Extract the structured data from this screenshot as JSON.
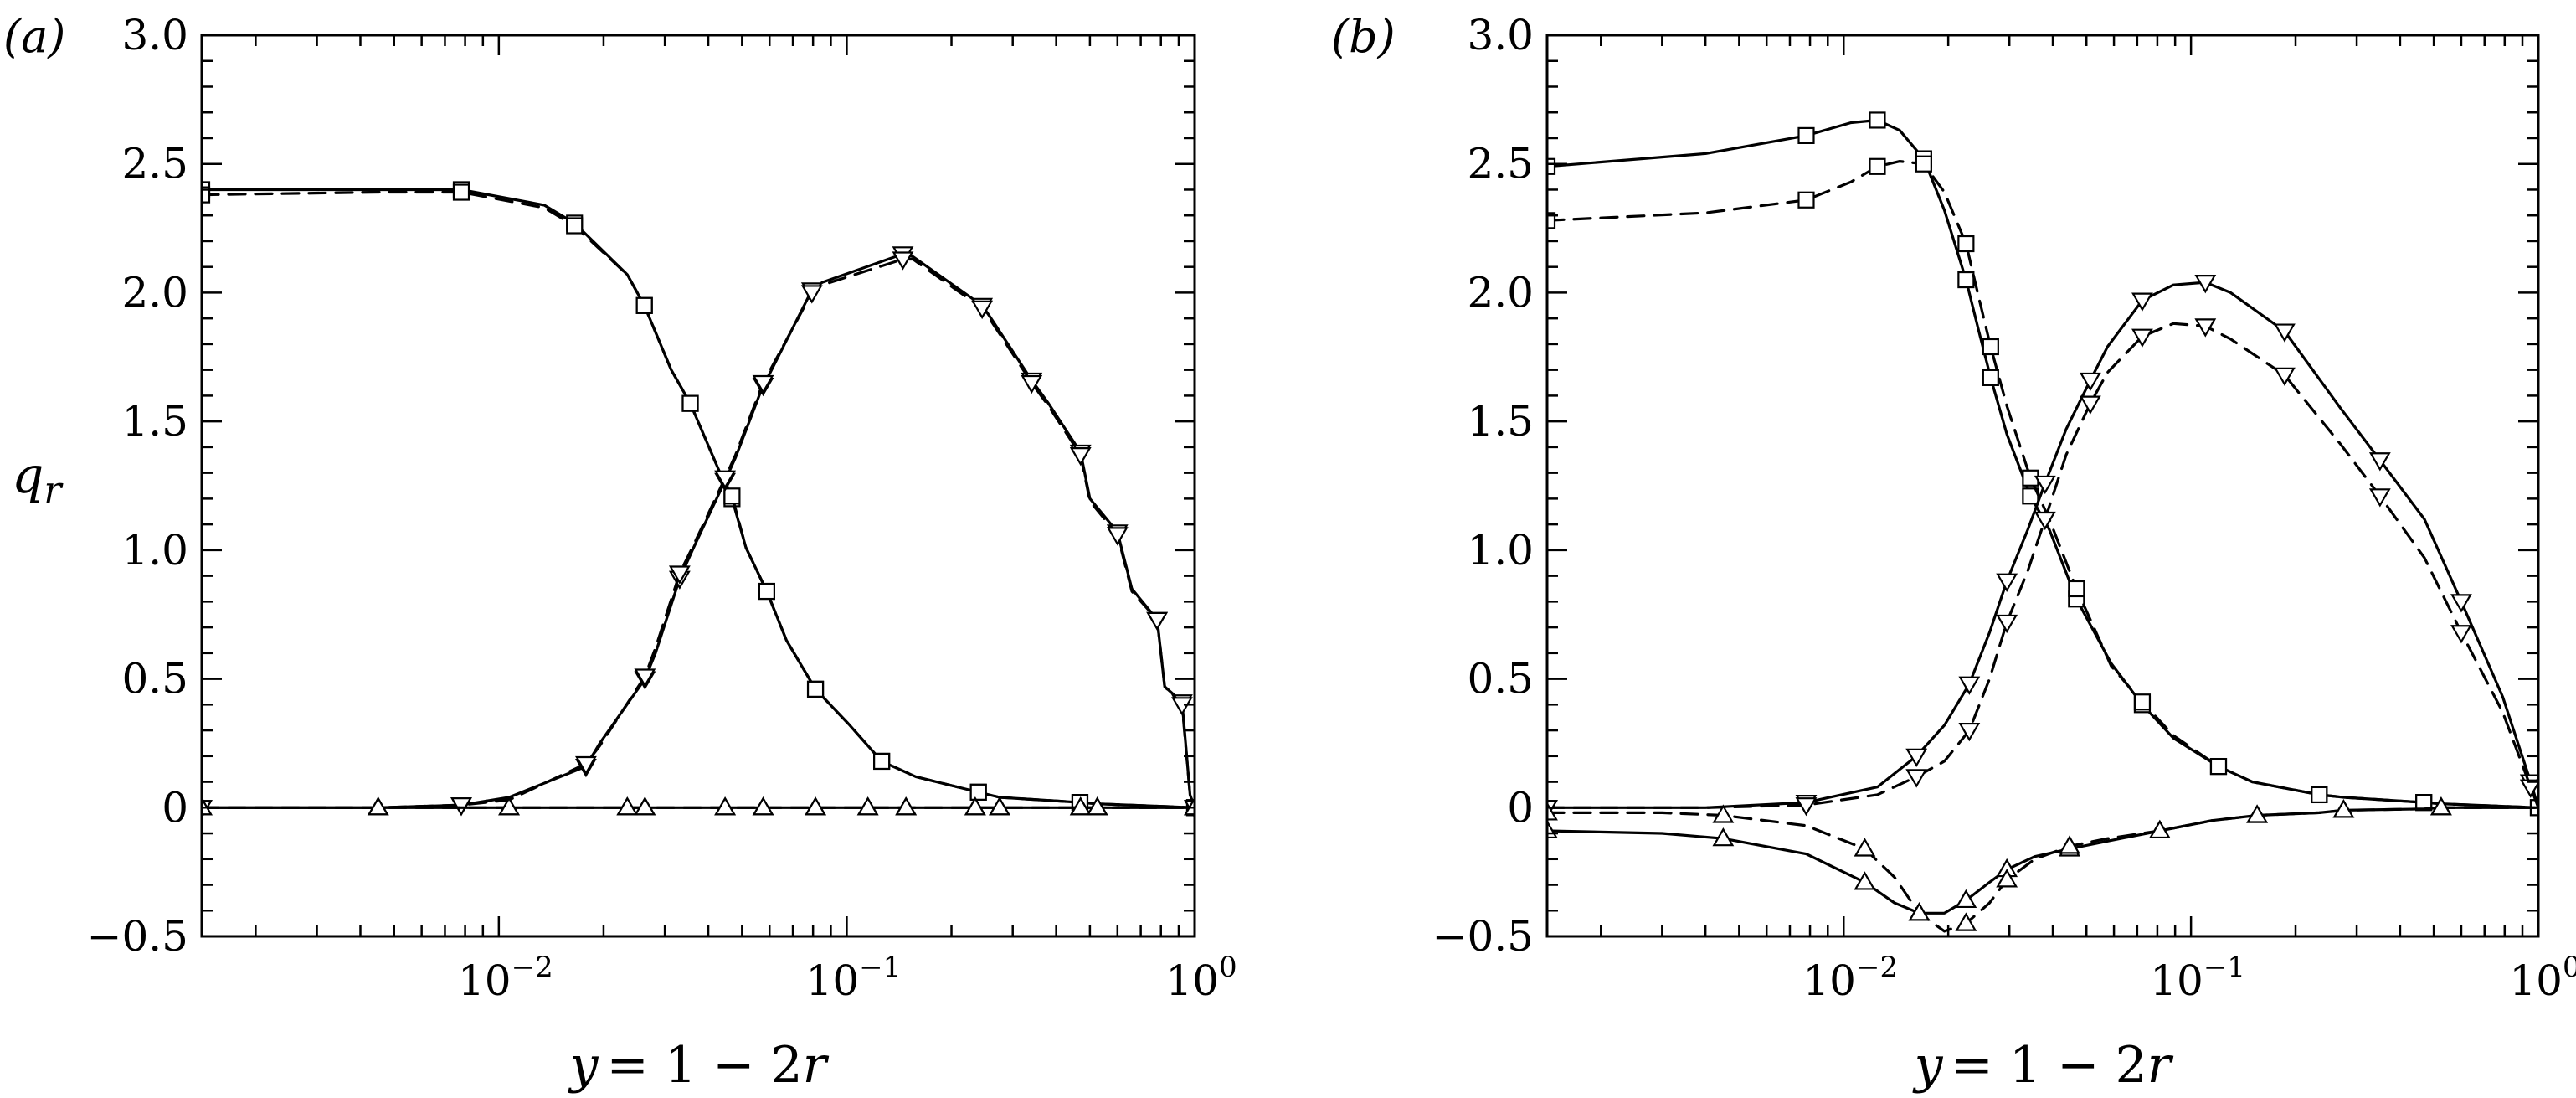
{
  "figure": {
    "ylabel_main": "q",
    "ylabel_sub": "r",
    "xlabel_var": "y",
    "xlabel_expr": "= 1 − 2",
    "xlabel_r": "r",
    "xtick_base": "10",
    "xtick_exponents": [
      "−2",
      "−1",
      "0"
    ],
    "ytick_labels": [
      "3.0",
      "2.5",
      "2.0",
      "1.5",
      "1.0",
      "0.5",
      "0",
      "−0.5"
    ]
  },
  "chart_data": [
    {
      "type": "line",
      "panel_label": "(a)",
      "xscale": "log",
      "xlim": [
        0.0014,
        1.0
      ],
      "ylim": [
        -0.5,
        3.0
      ],
      "xlabel": "y = 1 − 2r",
      "ylabel": "q_r",
      "series": [
        {
          "name": "square-solid",
          "marker": "square",
          "dash": "solid",
          "x": [
            0.0014,
            0.0045,
            0.0078,
            0.0135,
            0.0165,
            0.0234,
            0.0262,
            0.0313,
            0.0355,
            0.0426,
            0.0468,
            0.0513,
            0.0589,
            0.0671,
            0.0813,
            0.102,
            0.126,
            0.158,
            0.239,
            0.275,
            0.468,
            0.525,
            1.0
          ],
          "y": [
            2.4,
            2.4,
            2.4,
            2.34,
            2.27,
            2.07,
            1.95,
            1.7,
            1.57,
            1.32,
            1.2,
            1.01,
            0.84,
            0.65,
            0.46,
            0.32,
            0.18,
            0.12,
            0.06,
            0.04,
            0.02,
            0.015,
            0.0
          ]
        },
        {
          "name": "square-dashed",
          "marker": "square",
          "dash": "dashed",
          "x": [
            0.0014,
            0.0045,
            0.0078,
            0.0135,
            0.0165,
            0.0234,
            0.0262,
            0.0313,
            0.0355,
            0.0426,
            0.0468,
            0.0513,
            0.0589,
            0.0671,
            0.0813,
            0.102,
            0.126,
            0.158,
            0.239,
            0.275,
            0.468,
            0.525,
            1.0
          ],
          "y": [
            2.38,
            2.39,
            2.39,
            2.33,
            2.26,
            2.07,
            1.95,
            1.7,
            1.57,
            1.32,
            1.21,
            1.01,
            0.84,
            0.65,
            0.46,
            0.32,
            0.18,
            0.12,
            0.06,
            0.04,
            0.02,
            0.015,
            0.0
          ]
        },
        {
          "name": "down-triangle-solid",
          "marker": "triangle-down",
          "dash": "solid",
          "x": [
            0.0014,
            0.0045,
            0.0078,
            0.0107,
            0.0178,
            0.0195,
            0.0263,
            0.0282,
            0.0331,
            0.0363,
            0.0447,
            0.0479,
            0.0575,
            0.0603,
            0.0794,
            0.0851,
            0.145,
            0.155,
            0.245,
            0.26,
            0.34,
            0.38,
            0.47,
            0.5,
            0.6,
            0.66,
            0.78,
            0.82,
            0.92,
            0.97,
            1.0
          ],
          "y": [
            0.0,
            0.0,
            0.01,
            0.04,
            0.16,
            0.25,
            0.5,
            0.6,
            0.89,
            1.01,
            1.27,
            1.36,
            1.64,
            1.69,
            2.01,
            2.04,
            2.15,
            2.14,
            1.95,
            1.9,
            1.66,
            1.57,
            1.38,
            1.2,
            1.07,
            0.85,
            0.73,
            0.47,
            0.41,
            0.05,
            0.0
          ]
        },
        {
          "name": "down-triangle-dashed",
          "marker": "triangle-down",
          "dash": "dashed",
          "x": [
            0.0014,
            0.0045,
            0.0078,
            0.0107,
            0.0178,
            0.0195,
            0.0263,
            0.0282,
            0.0331,
            0.0363,
            0.0447,
            0.0479,
            0.0575,
            0.0603,
            0.0794,
            0.0851,
            0.145,
            0.155,
            0.245,
            0.26,
            0.34,
            0.38,
            0.47,
            0.5,
            0.6,
            0.66,
            0.78,
            0.82,
            0.92,
            0.97,
            1.0
          ],
          "y": [
            0.0,
            0.0,
            0.01,
            0.03,
            0.17,
            0.24,
            0.51,
            0.62,
            0.91,
            1.02,
            1.28,
            1.37,
            1.65,
            1.7,
            2.0,
            2.03,
            2.13,
            2.13,
            1.94,
            1.89,
            1.65,
            1.56,
            1.37,
            1.19,
            1.06,
            0.84,
            0.73,
            0.47,
            0.4,
            0.05,
            0.0
          ]
        },
        {
          "name": "up-triangle-solid",
          "marker": "triangle-up",
          "dash": "solid",
          "x": [
            0.0014,
            0.0045,
            0.0107,
            0.0234,
            0.0263,
            0.0447,
            0.0575,
            0.0813,
            0.115,
            0.148,
            0.234,
            0.275,
            0.47,
            0.525,
            1.0
          ],
          "y": [
            0,
            0,
            0,
            0,
            0,
            0,
            0,
            0,
            0,
            0,
            0,
            0,
            0,
            0,
            0
          ]
        },
        {
          "name": "up-triangle-dashed",
          "marker": "triangle-up",
          "dash": "dashed",
          "x": [
            0.0014,
            0.0045,
            0.0107,
            0.0234,
            0.0263,
            0.0447,
            0.0575,
            0.0813,
            0.115,
            0.148,
            0.234,
            0.275,
            0.47,
            0.525,
            1.0
          ],
          "y": [
            0,
            0,
            0,
            0,
            0,
            0,
            0,
            0,
            0,
            0,
            0,
            0,
            0,
            0,
            0
          ]
        }
      ]
    },
    {
      "type": "line",
      "panel_label": "(b)",
      "xscale": "log",
      "xlim": [
        0.0014,
        1.0
      ],
      "ylim": [
        -0.5,
        3.0
      ],
      "xlabel": "y = 1 − 2r",
      "ylabel": "q_r",
      "series": [
        {
          "name": "square-solid",
          "marker": "square",
          "dash": "solid",
          "x": [
            0.0014,
            0.004,
            0.0078,
            0.0105,
            0.0125,
            0.0145,
            0.017,
            0.0195,
            0.0225,
            0.0245,
            0.0265,
            0.0295,
            0.0345,
            0.0391,
            0.0468,
            0.0589,
            0.0724,
            0.089,
            0.12,
            0.15,
            0.234,
            0.275,
            0.468,
            0.525,
            1.0
          ],
          "y": [
            2.49,
            2.54,
            2.61,
            2.66,
            2.67,
            2.63,
            2.52,
            2.32,
            2.05,
            1.85,
            1.67,
            1.45,
            1.21,
            1.08,
            0.81,
            0.56,
            0.4,
            0.27,
            0.16,
            0.1,
            0.05,
            0.04,
            0.02,
            0.015,
            0.0
          ]
        },
        {
          "name": "square-dashed",
          "marker": "square",
          "dash": "dashed",
          "x": [
            0.0014,
            0.004,
            0.0078,
            0.0105,
            0.0125,
            0.0145,
            0.017,
            0.0195,
            0.0225,
            0.0245,
            0.0265,
            0.0295,
            0.0345,
            0.0391,
            0.0468,
            0.0589,
            0.0724,
            0.089,
            0.12,
            0.15,
            0.234,
            0.275,
            0.468,
            0.525,
            1.0
          ],
          "y": [
            2.28,
            2.31,
            2.36,
            2.43,
            2.49,
            2.51,
            2.5,
            2.39,
            2.19,
            1.98,
            1.79,
            1.56,
            1.28,
            1.12,
            0.85,
            0.55,
            0.41,
            0.28,
            0.16,
            0.1,
            0.05,
            0.04,
            0.02,
            0.015,
            0.0
          ]
        },
        {
          "name": "down-triangle-solid",
          "marker": "triangle-down",
          "dash": "solid",
          "x": [
            0.0014,
            0.004,
            0.0078,
            0.0125,
            0.0162,
            0.0195,
            0.023,
            0.0263,
            0.0295,
            0.0339,
            0.038,
            0.0437,
            0.0513,
            0.0575,
            0.0724,
            0.089,
            0.11,
            0.13,
            0.186,
            0.27,
            0.35,
            0.47,
            0.6,
            0.79,
            0.95,
            1.0
          ],
          "y": [
            0.0,
            0.0,
            0.02,
            0.08,
            0.2,
            0.32,
            0.48,
            0.68,
            0.88,
            1.08,
            1.26,
            1.47,
            1.66,
            1.79,
            1.97,
            2.03,
            2.04,
            2.0,
            1.85,
            1.55,
            1.35,
            1.12,
            0.8,
            0.43,
            0.1,
            0.0
          ]
        },
        {
          "name": "down-triangle-dashed",
          "marker": "triangle-down",
          "dash": "dashed",
          "x": [
            0.0014,
            0.004,
            0.0078,
            0.0125,
            0.0162,
            0.0195,
            0.023,
            0.0263,
            0.0295,
            0.0339,
            0.038,
            0.0437,
            0.0513,
            0.0575,
            0.0724,
            0.089,
            0.11,
            0.13,
            0.186,
            0.27,
            0.35,
            0.47,
            0.6,
            0.79,
            0.95,
            1.0
          ],
          "y": [
            0.0,
            0.0,
            0.01,
            0.05,
            0.12,
            0.18,
            0.3,
            0.5,
            0.72,
            0.92,
            1.12,
            1.37,
            1.57,
            1.69,
            1.83,
            1.88,
            1.87,
            1.82,
            1.68,
            1.41,
            1.21,
            0.97,
            0.68,
            0.37,
            0.08,
            0.0
          ]
        },
        {
          "name": "up-triangle-solid",
          "marker": "triangle-up",
          "dash": "solid",
          "x": [
            0.0014,
            0.003,
            0.0045,
            0.0078,
            0.0115,
            0.014,
            0.0165,
            0.0195,
            0.0225,
            0.0263,
            0.0295,
            0.0355,
            0.0447,
            0.0575,
            0.0813,
            0.115,
            0.155,
            0.234,
            0.275,
            0.47,
            0.525,
            1.0
          ],
          "y": [
            -0.09,
            -0.1,
            -0.12,
            -0.18,
            -0.29,
            -0.37,
            -0.41,
            -0.41,
            -0.36,
            -0.29,
            -0.24,
            -0.19,
            -0.16,
            -0.13,
            -0.09,
            -0.05,
            -0.03,
            -0.02,
            -0.01,
            -0.005,
            0.0,
            0.0
          ]
        },
        {
          "name": "up-triangle-dashed",
          "marker": "triangle-up",
          "dash": "dashed",
          "x": [
            0.0014,
            0.003,
            0.0045,
            0.0078,
            0.0115,
            0.014,
            0.0165,
            0.0195,
            0.0225,
            0.0263,
            0.0295,
            0.0355,
            0.0447,
            0.0575,
            0.0813,
            0.115,
            0.155,
            0.234,
            0.275,
            0.47,
            0.525,
            1.0
          ],
          "y": [
            -0.02,
            -0.02,
            -0.03,
            -0.07,
            -0.16,
            -0.27,
            -0.41,
            -0.48,
            -0.45,
            -0.37,
            -0.28,
            -0.2,
            -0.15,
            -0.12,
            -0.09,
            -0.05,
            -0.03,
            -0.02,
            -0.01,
            -0.005,
            0.0,
            0.0
          ]
        }
      ]
    }
  ]
}
